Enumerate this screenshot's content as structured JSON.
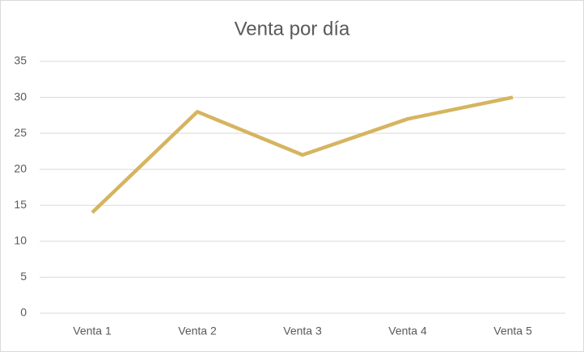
{
  "chart_data": {
    "type": "line",
    "title": "Venta por día",
    "categories": [
      "Venta 1",
      "Venta 2",
      "Venta 3",
      "Venta 4",
      "Venta 5"
    ],
    "values": [
      14,
      28,
      22,
      27,
      30
    ],
    "color": "#d6b460",
    "ylim": [
      0,
      35
    ],
    "yticks": [
      0,
      5,
      10,
      15,
      20,
      25,
      30,
      35
    ],
    "grid": true
  }
}
